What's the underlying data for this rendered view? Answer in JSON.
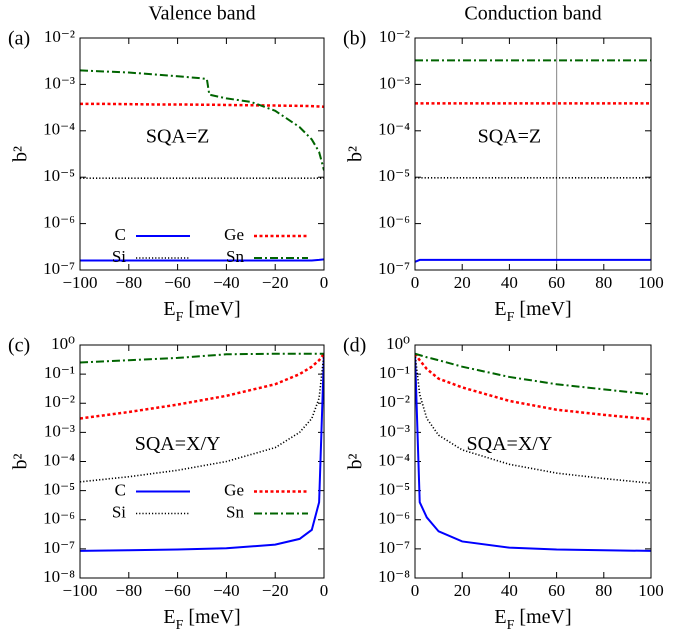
{
  "chart_data": [
    {
      "type": "line",
      "title": "Valence band",
      "panel_label": "(a)",
      "annotation": "SQA=Z",
      "xlabel": "EF [meV]",
      "ylabel": "b²",
      "yscale": "log",
      "legend": "lower center",
      "xlim": [
        -100,
        0
      ],
      "xticks": [
        {
          "value": -100,
          "label": "−100"
        },
        {
          "value": -80,
          "label": "−80"
        },
        {
          "value": -60,
          "label": "−60"
        },
        {
          "value": -40,
          "label": "−40"
        },
        {
          "value": -20,
          "label": "−20"
        },
        0
      ],
      "ylim": [
        1e-07,
        0.01
      ],
      "yticks": [
        {
          "value": 1e-07,
          "label": "10⁻⁷"
        },
        {
          "value": 1e-06,
          "label": "10⁻⁶"
        },
        {
          "value": 1e-05,
          "label": "10⁻⁵"
        },
        {
          "value": 0.0001,
          "label": "10⁻⁴"
        },
        {
          "value": 0.001,
          "label": "10⁻³"
        },
        {
          "value": 0.01,
          "label": "10⁻²"
        }
      ],
      "x": [
        -100,
        -90,
        -80,
        -70,
        -60,
        -50,
        -48,
        -47,
        -40,
        -30,
        -20,
        -10,
        -5,
        -2,
        0
      ],
      "series": [
        {
          "name": "C",
          "color": "#0000ff",
          "style": "solid",
          "values": [
            1.6e-07,
            1.6e-07,
            1.6e-07,
            1.6e-07,
            1.6e-07,
            1.6e-07,
            1.6e-07,
            1.6e-07,
            1.6e-07,
            1.6e-07,
            1.6e-07,
            1.6e-07,
            1.6e-07,
            1.65e-07,
            1.7e-07
          ]
        },
        {
          "name": "Ge",
          "color": "#ff0000",
          "style": "dashed",
          "values": [
            0.00038,
            0.00038,
            0.000375,
            0.00037,
            0.00037,
            0.000365,
            0.000365,
            0.000365,
            0.00036,
            0.000355,
            0.00035,
            0.000345,
            0.00034,
            0.000335,
            0.00033
          ]
        },
        {
          "name": "Si",
          "color": "#000000",
          "style": "dotted",
          "values": [
            9.5e-06,
            9.5e-06,
            9.5e-06,
            9.5e-06,
            9.5e-06,
            9.5e-06,
            9.5e-06,
            9.5e-06,
            9.5e-06,
            9.5e-06,
            9.5e-06,
            9.5e-06,
            9.5e-06,
            9.5e-06,
            9.5e-06
          ]
        },
        {
          "name": "Sn",
          "color": "#006400",
          "style": "dashdot",
          "values": [
            0.002,
            0.0019,
            0.0018,
            0.00165,
            0.0015,
            0.00135,
            0.0013,
            0.0006,
            0.0005,
            0.00042,
            0.00027,
            0.00012,
            6.5e-05,
            3.5e-05,
            1.4e-05
          ]
        }
      ]
    },
    {
      "type": "line",
      "title": "Conduction band",
      "panel_label": "(b)",
      "annotation": "SQA=Z",
      "xlabel": "EF [meV]",
      "ylabel": "b²",
      "yscale": "log",
      "vline": 60,
      "xlim": [
        0,
        100
      ],
      "xticks": [
        0,
        20,
        40,
        60,
        80,
        100
      ],
      "ylim": [
        1e-07,
        0.01
      ],
      "yticks": [
        {
          "value": 1e-07,
          "label": "10⁻⁷"
        },
        {
          "value": 1e-06,
          "label": "10⁻⁶"
        },
        {
          "value": 1e-05,
          "label": "10⁻⁵"
        },
        {
          "value": 0.0001,
          "label": "10⁻⁴"
        },
        {
          "value": 0.001,
          "label": "10⁻³"
        },
        {
          "value": 0.01,
          "label": "10⁻²"
        }
      ],
      "x": [
        0,
        2,
        10,
        20,
        30,
        40,
        50,
        60,
        70,
        80,
        90,
        100
      ],
      "series": [
        {
          "color": "#0000ff",
          "style": "solid",
          "values": [
            1.5e-07,
            1.65e-07,
            1.65e-07,
            1.65e-07,
            1.65e-07,
            1.65e-07,
            1.65e-07,
            1.65e-07,
            1.65e-07,
            1.65e-07,
            1.65e-07,
            1.65e-07
          ]
        },
        {
          "color": "#ff0000",
          "style": "dashed",
          "values": [
            0.00039,
            0.00039,
            0.00039,
            0.00039,
            0.00039,
            0.00039,
            0.00039,
            0.00039,
            0.00039,
            0.00039,
            0.00039,
            0.00039
          ]
        },
        {
          "color": "#000000",
          "style": "dotted",
          "values": [
            9.7e-06,
            9.7e-06,
            9.7e-06,
            9.7e-06,
            9.7e-06,
            9.7e-06,
            9.7e-06,
            9.7e-06,
            9.7e-06,
            9.7e-06,
            9.7e-06,
            9.7e-06
          ]
        },
        {
          "color": "#006400",
          "style": "dashdot",
          "values": [
            0.0033,
            0.0033,
            0.0033,
            0.0033,
            0.0033,
            0.0033,
            0.0033,
            0.0033,
            0.0033,
            0.0033,
            0.0033,
            0.0033
          ]
        }
      ]
    },
    {
      "type": "line",
      "panel_label": "(c)",
      "annotation": "SQA=X/Y",
      "xlabel": "EF [meV]",
      "ylabel": "b²",
      "yscale": "log",
      "legend": "center",
      "xlim": [
        -100,
        0
      ],
      "xticks": [
        {
          "value": -100,
          "label": "−100"
        },
        {
          "value": -80,
          "label": "−80"
        },
        {
          "value": -60,
          "label": "−60"
        },
        {
          "value": -40,
          "label": "−40"
        },
        {
          "value": -20,
          "label": "−20"
        },
        0
      ],
      "ylim": [
        1e-08,
        1
      ],
      "yticks": [
        {
          "value": 1e-08,
          "label": "10⁻⁸"
        },
        {
          "value": 1e-07,
          "label": "10⁻⁷"
        },
        {
          "value": 1e-06,
          "label": "10⁻⁶"
        },
        {
          "value": 1e-05,
          "label": "10⁻⁵"
        },
        {
          "value": 0.0001,
          "label": "10⁻⁴"
        },
        {
          "value": 0.001,
          "label": "10⁻³"
        },
        {
          "value": 0.01,
          "label": "10⁻²"
        },
        {
          "value": 0.1,
          "label": "10⁻¹"
        },
        {
          "value": 1,
          "label": "10⁰"
        }
      ],
      "x": [
        -100,
        -80,
        -60,
        -40,
        -20,
        -10,
        -5,
        -2,
        0
      ],
      "series": [
        {
          "name": "C",
          "color": "#0000ff",
          "style": "solid",
          "values": [
            8.5e-08,
            9e-08,
            9.5e-08,
            1.05e-07,
            1.4e-07,
            2.2e-07,
            4.5e-07,
            4e-06,
            0.5
          ]
        },
        {
          "name": "Ge",
          "color": "#ff0000",
          "style": "dashed",
          "values": [
            0.003,
            0.005,
            0.009,
            0.018,
            0.045,
            0.1,
            0.18,
            0.3,
            0.5
          ]
        },
        {
          "name": "Si",
          "color": "#000000",
          "style": "dotted",
          "values": [
            2e-05,
            3e-05,
            5e-05,
            0.0001,
            0.0003,
            0.001,
            0.003,
            0.015,
            0.5
          ]
        },
        {
          "name": "Sn",
          "color": "#006400",
          "style": "dashdot",
          "values": [
            0.25,
            0.3,
            0.36,
            0.48,
            0.5,
            0.5,
            0.5,
            0.5,
            0.5
          ]
        }
      ]
    },
    {
      "type": "line",
      "panel_label": "(d)",
      "annotation": "SQA=X/Y",
      "xlabel": "EF [meV]",
      "ylabel": "b²",
      "yscale": "log",
      "xlim": [
        0,
        100
      ],
      "xticks": [
        0,
        20,
        40,
        60,
        80,
        100
      ],
      "ylim": [
        1e-08,
        1
      ],
      "yticks": [
        {
          "value": 1e-08,
          "label": "10⁻⁸"
        },
        {
          "value": 1e-07,
          "label": "10⁻⁷"
        },
        {
          "value": 1e-06,
          "label": "10⁻⁶"
        },
        {
          "value": 1e-05,
          "label": "10⁻⁵"
        },
        {
          "value": 0.0001,
          "label": "10⁻⁴"
        },
        {
          "value": 0.001,
          "label": "10⁻³"
        },
        {
          "value": 0.01,
          "label": "10⁻²"
        },
        {
          "value": 0.1,
          "label": "10⁻¹"
        },
        {
          "value": 1,
          "label": "10⁰"
        }
      ],
      "x": [
        0,
        2,
        5,
        10,
        20,
        40,
        60,
        80,
        100
      ],
      "series": [
        {
          "color": "#0000ff",
          "style": "solid",
          "values": [
            0.5,
            4e-06,
            1.2e-06,
            4e-07,
            1.8e-07,
            1.1e-07,
            9.5e-08,
            9e-08,
            8.5e-08
          ]
        },
        {
          "color": "#ff0000",
          "style": "dashed",
          "values": [
            0.5,
            0.3,
            0.15,
            0.07,
            0.035,
            0.012,
            0.006,
            0.004,
            0.0028
          ]
        },
        {
          "color": "#000000",
          "style": "dotted",
          "values": [
            0.5,
            0.02,
            0.003,
            0.0008,
            0.00025,
            8e-05,
            4e-05,
            2.6e-05,
            1.8e-05
          ]
        },
        {
          "color": "#006400",
          "style": "dashdot",
          "values": [
            0.5,
            0.45,
            0.38,
            0.3,
            0.18,
            0.08,
            0.045,
            0.03,
            0.02
          ]
        }
      ]
    }
  ]
}
